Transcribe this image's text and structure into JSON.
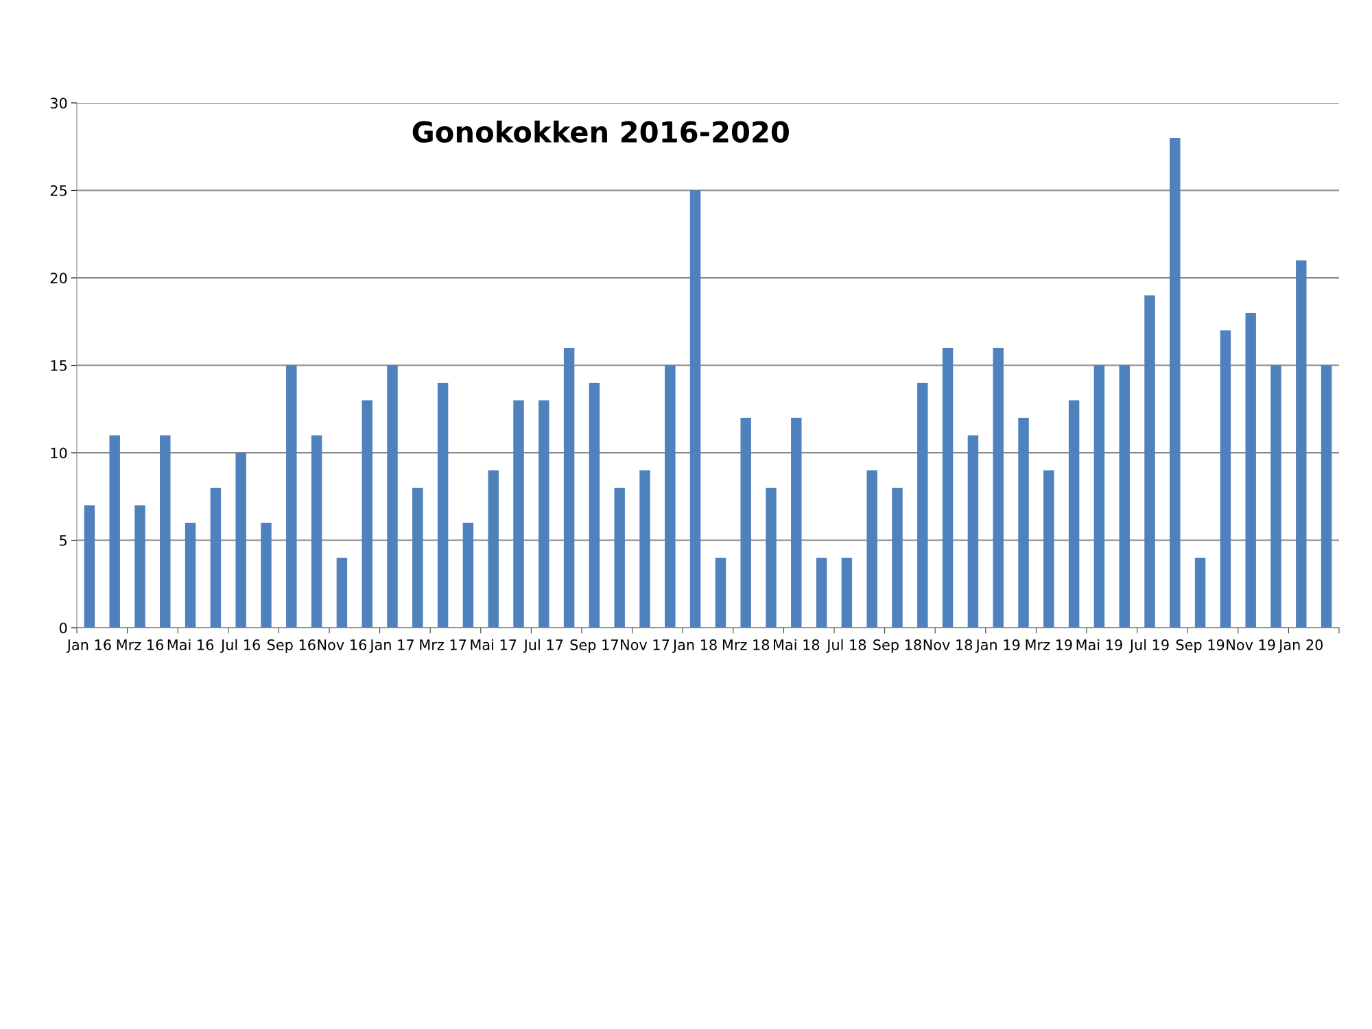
{
  "chart_data": {
    "type": "bar",
    "title": "Gonokokken 2016-2020",
    "categories": [
      "Jan 16",
      null,
      "Mrz 16",
      null,
      "Mai 16",
      null,
      "Jul 16",
      null,
      "Sep 16",
      null,
      "Nov 16",
      null,
      "Jan 17",
      null,
      "Mrz 17",
      null,
      "Mai 17",
      null,
      "Jul 17",
      null,
      "Sep 17",
      null,
      "Nov 17",
      null,
      "Jan 18",
      null,
      "Mrz 18",
      null,
      "Mai 18",
      null,
      "Jul 18",
      null,
      "Sep 18",
      null,
      "Nov 18",
      null,
      "Jan 19",
      null,
      "Mrz 19",
      null,
      "Mai 19",
      null,
      "Jul 19",
      null,
      "Sep 19",
      null,
      "Nov 19",
      null,
      "Jan 20",
      null
    ],
    "values": [
      7,
      11,
      7,
      11,
      6,
      8,
      10,
      6,
      15,
      11,
      4,
      13,
      15,
      8,
      14,
      6,
      9,
      13,
      13,
      16,
      14,
      8,
      9,
      15,
      25,
      4,
      12,
      8,
      12,
      4,
      4,
      9,
      8,
      14,
      16,
      11,
      16,
      12,
      9,
      13,
      15,
      15,
      19,
      28,
      4,
      17,
      18,
      15,
      21,
      15
    ],
    "color": "#4f81bd",
    "ylim": [
      0,
      30
    ],
    "yticks": [
      0,
      5,
      10,
      15,
      20,
      25,
      30
    ],
    "grid": "y",
    "legend": false
  }
}
